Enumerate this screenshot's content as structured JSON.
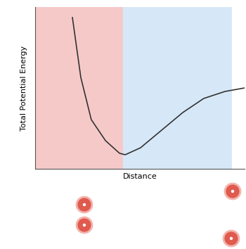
{
  "chart_data": {
    "type": "line",
    "x_label": "Distance",
    "y_label": "Total Potential Energy",
    "x": [
      1.78,
      2.18,
      2.68,
      3.36,
      4.03,
      4.3,
      5.03,
      6.04,
      7.05,
      8.05,
      9.06,
      10.0
    ],
    "values": [
      9.35,
      5.65,
      3.04,
      1.74,
      0.96,
      0.87,
      1.3,
      2.39,
      3.48,
      4.35,
      4.78,
      5.0
    ],
    "color": "#333333",
    "xlim": [
      0,
      10
    ],
    "ylim": [
      0,
      10
    ],
    "xticks": [],
    "yticks": [],
    "tick_labels": false,
    "grid": false
  }
}
